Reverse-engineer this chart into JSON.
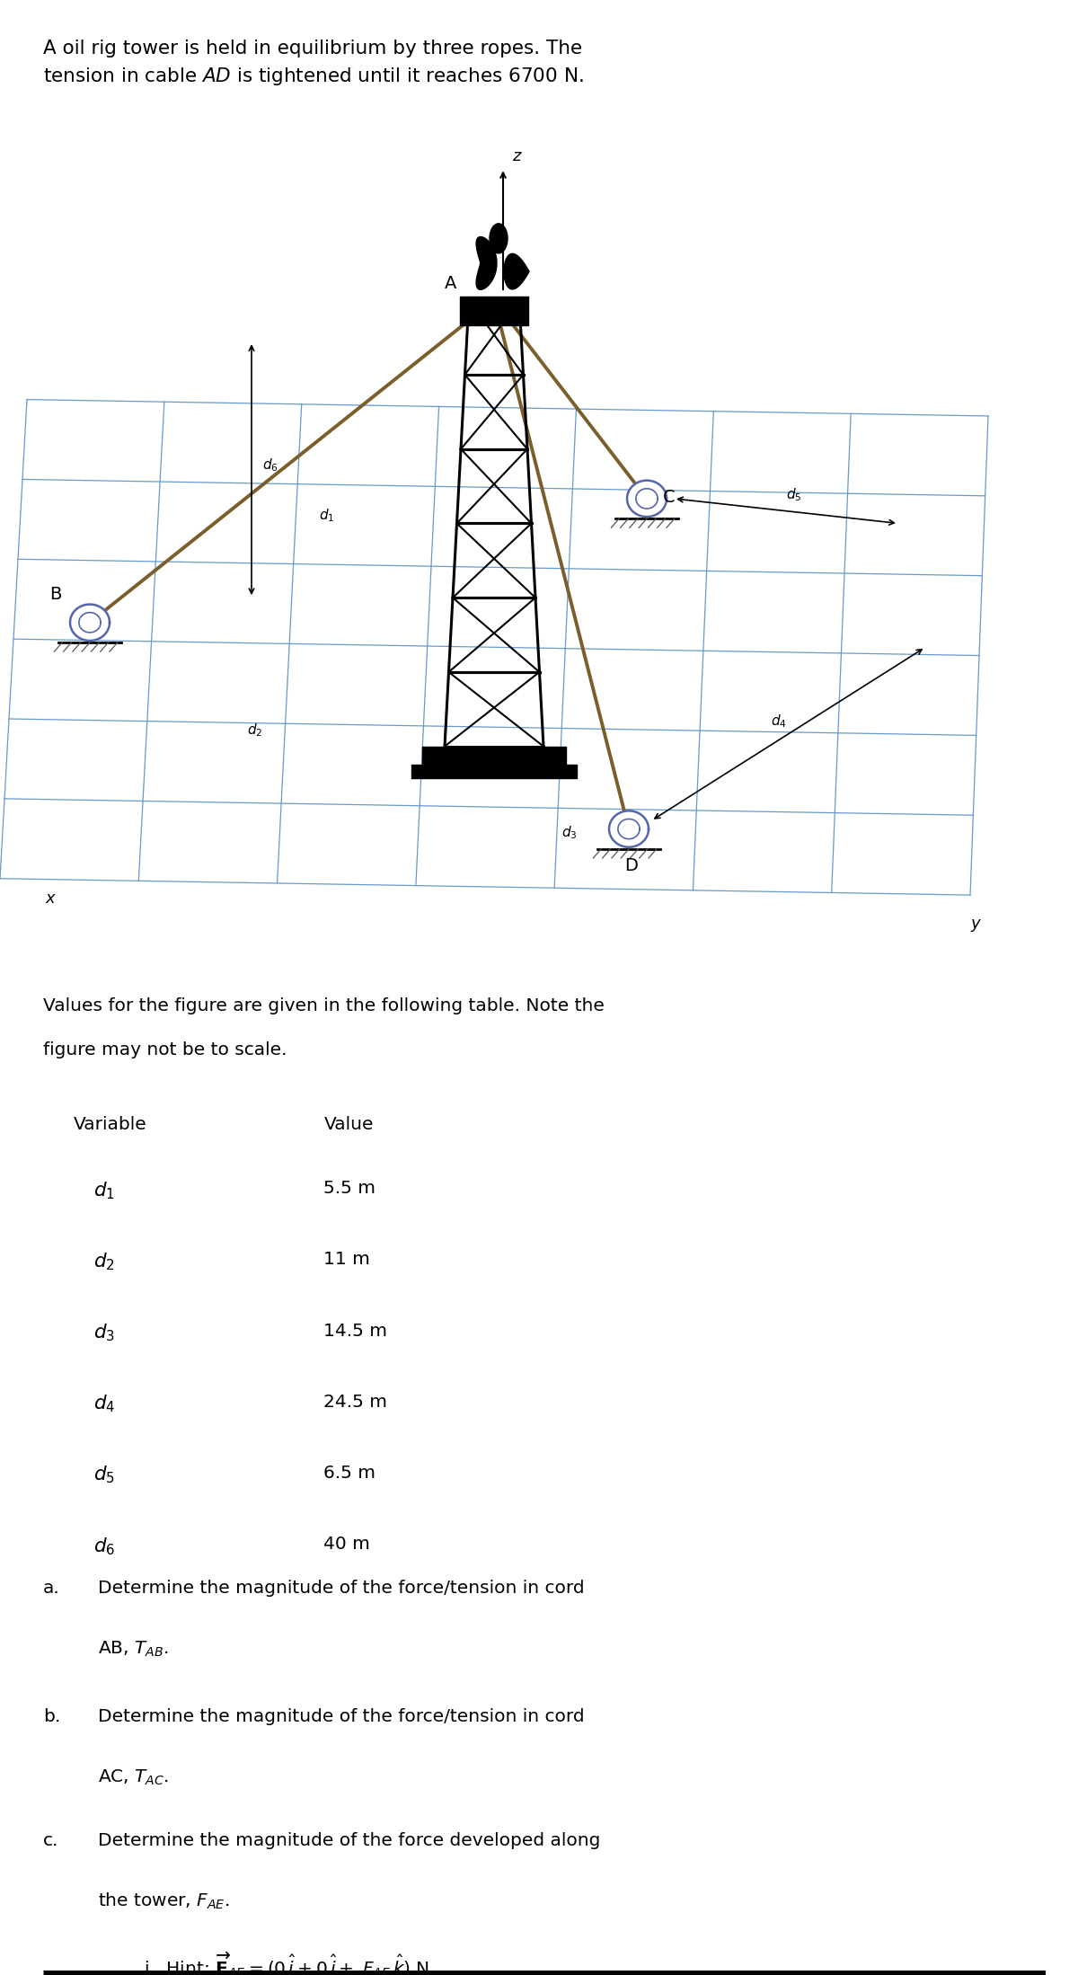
{
  "title_line1": "A oil rig tower is held in equilibrium by three ropes. The",
  "title_line2": "tension in cable $AD$ is tightened until it reaches 6700 N.",
  "fig_width": 12.0,
  "fig_height": 21.98,
  "bg_color": "#ffffff",
  "rope_color": "#7B5E2A",
  "grid_color": "#6699CC",
  "tower_color": "#000000",
  "variables_latex": [
    "$d_1$",
    "$d_2$",
    "$d_3$",
    "$d_4$",
    "$d_5$",
    "$d_6$"
  ],
  "values": [
    "5.5 m",
    "11 m",
    "14.5 m",
    "24.5 m",
    "6.5 m",
    "40 m"
  ]
}
